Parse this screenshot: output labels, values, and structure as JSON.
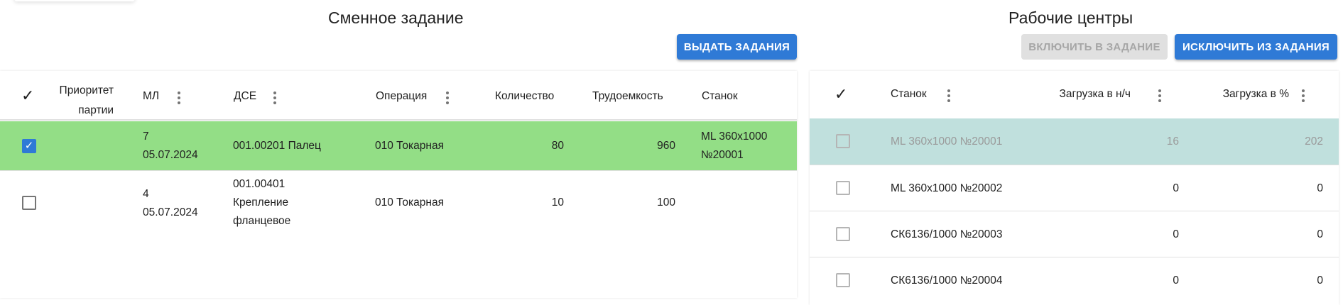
{
  "left": {
    "title": "Сменное задание",
    "issue_button": "ВЫДАТЬ ЗАДАНИЯ",
    "columns": {
      "priority_1": "Приоритет",
      "priority_2": "партии",
      "ml": "МЛ",
      "dse": "ДСЕ",
      "operation": "Операция",
      "quantity": "Количество",
      "labor": "Трудоемкость",
      "machine": "Станок"
    },
    "rows": [
      {
        "selected": true,
        "ml_num": "7",
        "ml_date": "05.07.2024",
        "dse": [
          "001.00201 Палец"
        ],
        "operation": "010 Токарная",
        "quantity": "80",
        "labor": "960",
        "machine": [
          "ML 360x1000",
          "№20001"
        ]
      },
      {
        "selected": false,
        "ml_num": "4",
        "ml_date": "05.07.2024",
        "dse": [
          "001.00401",
          "Крепление",
          "фланцевое"
        ],
        "operation": "010 Токарная",
        "quantity": "10",
        "labor": "100",
        "machine": []
      }
    ],
    "selected_row_color": "#93de86"
  },
  "right": {
    "title": "Рабочие центры",
    "include_button": "ВКЛЮЧИТЬ В ЗАДАНИЕ",
    "exclude_button": "ИСКЛЮЧИТЬ ИЗ ЗАДАНИЯ",
    "columns": {
      "machine": "Станок",
      "load_hours": "Загрузка в н/ч",
      "load_percent": "Загрузка в %"
    },
    "rows": [
      {
        "machine": "ML 360x1000 №20001",
        "load_hours": "16",
        "load_percent": "202",
        "highlighted": true
      },
      {
        "machine": "ML 360x1000 №20002",
        "load_hours": "0",
        "load_percent": "0"
      },
      {
        "machine": "СК6136/1000 №20003",
        "load_hours": "0",
        "load_percent": "0"
      },
      {
        "machine": "СК6136/1000 №20004",
        "load_hours": "0",
        "load_percent": "0"
      }
    ],
    "highlight_color": "#c0e0dd"
  }
}
